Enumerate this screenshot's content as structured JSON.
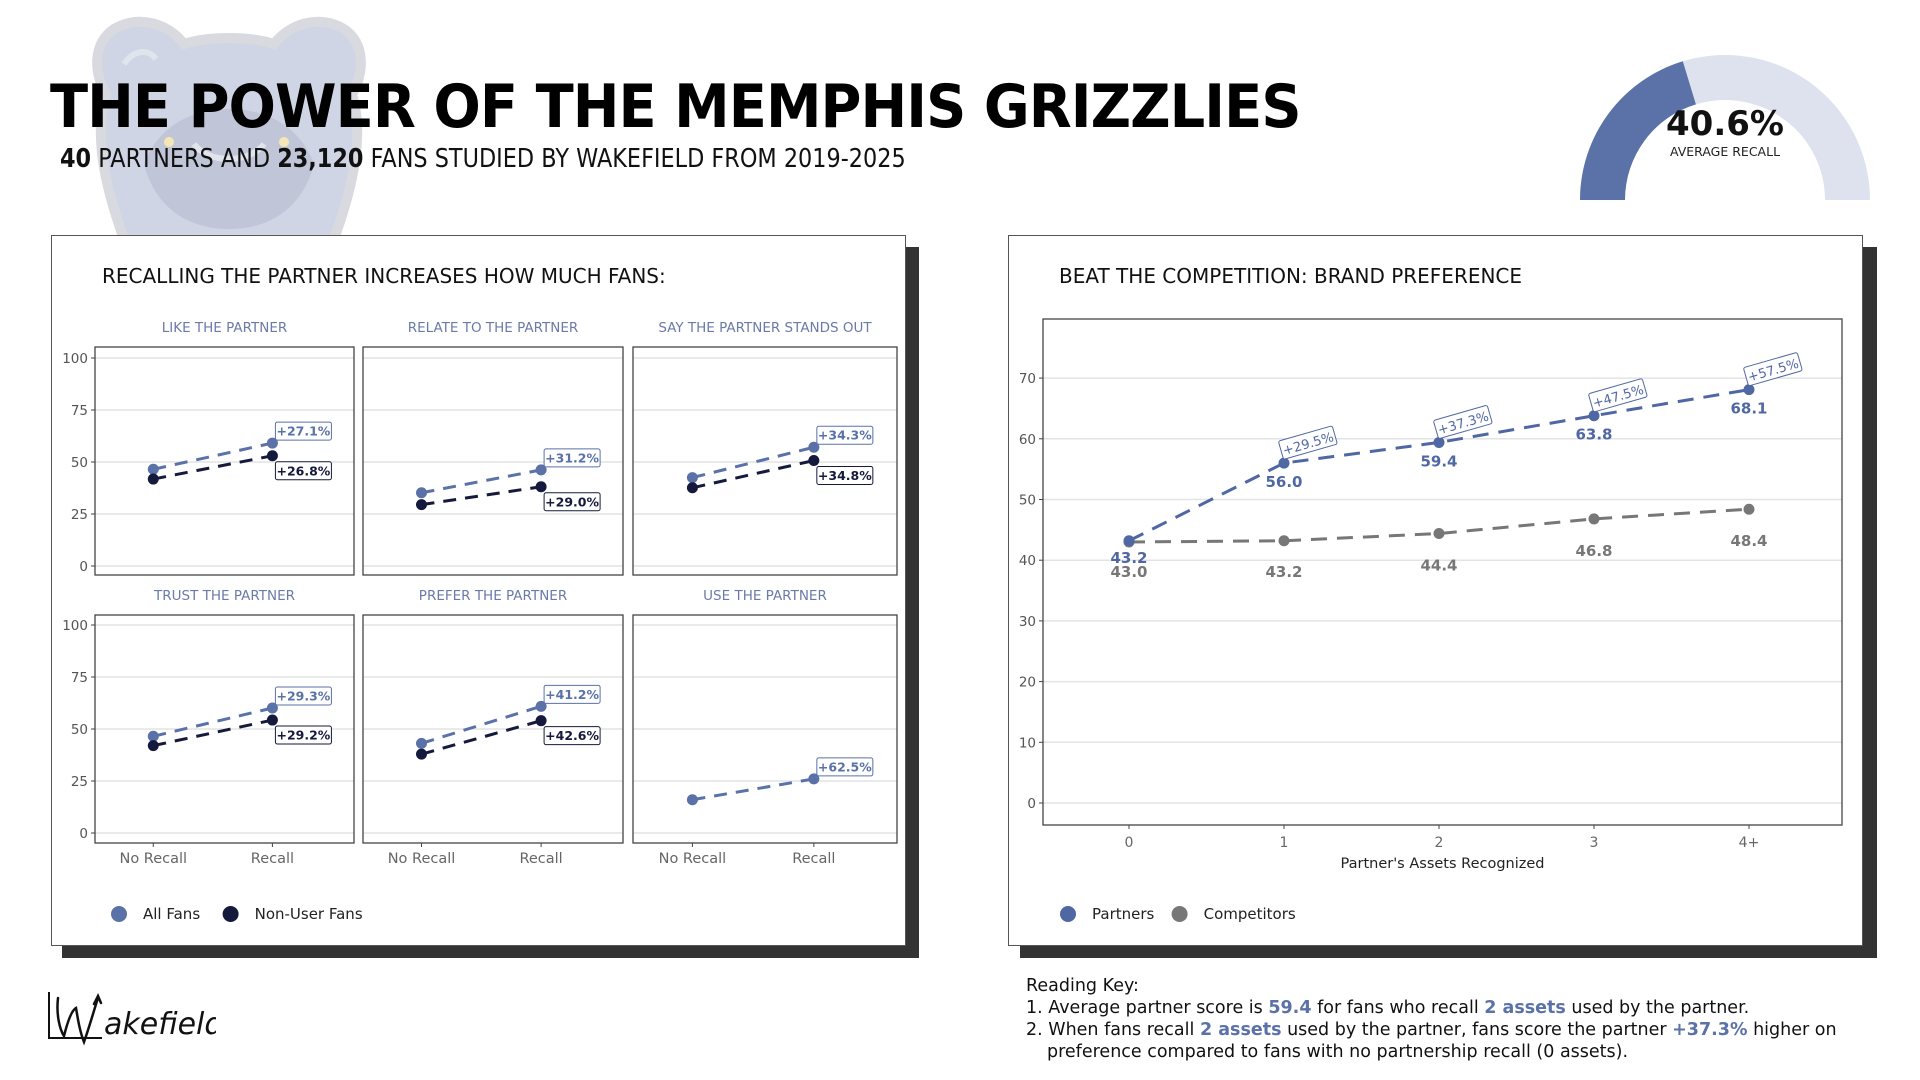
{
  "header": {
    "title": "THE POWER OF THE MEMPHIS GRIZZLIES",
    "subtitle_parts": [
      {
        "text": "40",
        "bold": true
      },
      {
        "text": " PARTNERS AND ",
        "bold": false
      },
      {
        "text": "23,120",
        "bold": true
      },
      {
        "text": " FANS STUDIED BY WAKEFIELD FROM 2019-2025",
        "bold": false
      }
    ],
    "logo_icon": "grizzly-bear-logo-icon"
  },
  "gauge": {
    "value_label": "40.6%",
    "value": 40.6,
    "caption": "AVERAGE RECALL",
    "fill_color": "#5a72a8",
    "track_color": "#dde2ee"
  },
  "colors": {
    "all_fans": "#5a72a8",
    "non_user": "#151a3c",
    "partners": "#4f67a3",
    "competitors": "#777777",
    "grid": "#e3e3e3"
  },
  "left_panel": {
    "title": "RECALLING THE PARTNER INCREASES HOW MUCH FANS:",
    "legend": [
      {
        "label": "All Fans",
        "series": "all_fans"
      },
      {
        "label": "Non-User Fans",
        "series": "non_user"
      }
    ]
  },
  "right_panel": {
    "title": "BEAT THE COMPETITION: BRAND PREFERENCE",
    "legend": [
      {
        "label": "Partners",
        "series": "partners"
      },
      {
        "label": "Competitors",
        "series": "competitors"
      }
    ]
  },
  "reading_key": {
    "heading": "Reading Key:",
    "line1": [
      {
        "t": "1. Average partner score is ",
        "hl": false
      },
      {
        "t": "59.4",
        "hl": true
      },
      {
        "t": " for fans who recall ",
        "hl": false
      },
      {
        "t": "2 assets",
        "hl": true
      },
      {
        "t": " used by the partner.",
        "hl": false
      }
    ],
    "line2": [
      {
        "t": "2. When fans recall ",
        "hl": false
      },
      {
        "t": "2 assets",
        "hl": true
      },
      {
        "t": " used by the partner, fans score the partner ",
        "hl": false
      },
      {
        "t": "+37.3%",
        "hl": true
      },
      {
        "t": " higher on",
        "hl": false
      }
    ],
    "line3": "preference compared to fans with no partnership recall (0 assets)."
  },
  "footer": {
    "brand": "Wakefield",
    "brand_icon": "wakefield-signature-logo-icon"
  },
  "chart_data": [
    {
      "type": "line",
      "title": "RECALLING THE PARTNER INCREASES HOW MUCH FANS:",
      "layout": "facets-2x3",
      "categories": [
        "No Recall",
        "Recall"
      ],
      "ylim": [
        0,
        100
      ],
      "yticks": [
        0,
        25,
        50,
        75,
        100
      ],
      "grid": true,
      "legend_position": "bottom-left",
      "facets": [
        {
          "title": "LIKE THE PARTNER",
          "series": [
            {
              "name": "All Fans",
              "key": "all_fans",
              "values": [
                46.5,
                59.1
              ],
              "label": "+27.1%"
            },
            {
              "name": "Non-User Fans",
              "key": "non_user",
              "values": [
                41.8,
                53.0
              ],
              "label": "+26.8%"
            }
          ]
        },
        {
          "title": "RELATE TO THE PARTNER",
          "series": [
            {
              "name": "All Fans",
              "key": "all_fans",
              "values": [
                35.2,
                46.2
              ],
              "label": "+31.2%"
            },
            {
              "name": "Non-User Fans",
              "key": "non_user",
              "values": [
                29.5,
                38.1
              ],
              "label": "+29.0%"
            }
          ]
        },
        {
          "title": "SAY THE PARTNER STANDS OUT",
          "series": [
            {
              "name": "All Fans",
              "key": "all_fans",
              "values": [
                42.5,
                57.1
              ],
              "label": "+34.3%"
            },
            {
              "name": "Non-User Fans",
              "key": "non_user",
              "values": [
                37.6,
                50.7
              ],
              "label": "+34.8%"
            }
          ]
        },
        {
          "title": "TRUST THE PARTNER",
          "series": [
            {
              "name": "All Fans",
              "key": "all_fans",
              "values": [
                46.5,
                60.1
              ],
              "label": "+29.3%"
            },
            {
              "name": "Non-User Fans",
              "key": "non_user",
              "values": [
                42.0,
                54.3
              ],
              "label": "+29.2%"
            }
          ]
        },
        {
          "title": "PREFER THE PARTNER",
          "series": [
            {
              "name": "All Fans",
              "key": "all_fans",
              "values": [
                43.1,
                60.9
              ],
              "label": "+41.2%"
            },
            {
              "name": "Non-User Fans",
              "key": "non_user",
              "values": [
                37.9,
                54.0
              ],
              "label": "+42.6%"
            }
          ]
        },
        {
          "title": "USE THE PARTNER",
          "series": [
            {
              "name": "All Fans",
              "key": "all_fans",
              "values": [
                16.0,
                26.0
              ],
              "label": "+62.5%"
            }
          ]
        }
      ]
    },
    {
      "type": "line",
      "title": "BEAT THE COMPETITION: BRAND PREFERENCE",
      "xlabel": "Partner's Assets Recognized",
      "ylabel": "",
      "categories": [
        "0",
        "1",
        "2",
        "3",
        "4+"
      ],
      "ylim": [
        -3.5,
        76.5
      ],
      "yticks": [
        0,
        10,
        20,
        30,
        40,
        50,
        60,
        70
      ],
      "grid": true,
      "legend_position": "bottom-left",
      "series": [
        {
          "name": "Partners",
          "key": "partners",
          "values": [
            43.2,
            56.0,
            59.4,
            63.8,
            68.1
          ],
          "value_labels": [
            "43.2",
            "56.0",
            "59.4",
            "63.8",
            "68.1"
          ],
          "lift_labels": [
            null,
            "+29.5%",
            "+37.3%",
            "+47.5%",
            "+57.5%"
          ]
        },
        {
          "name": "Competitors",
          "key": "competitors",
          "values": [
            43.0,
            43.2,
            44.4,
            46.8,
            48.4
          ],
          "value_labels": [
            "43.0",
            "43.2",
            "44.4",
            "46.8",
            "48.4"
          ]
        }
      ]
    }
  ]
}
